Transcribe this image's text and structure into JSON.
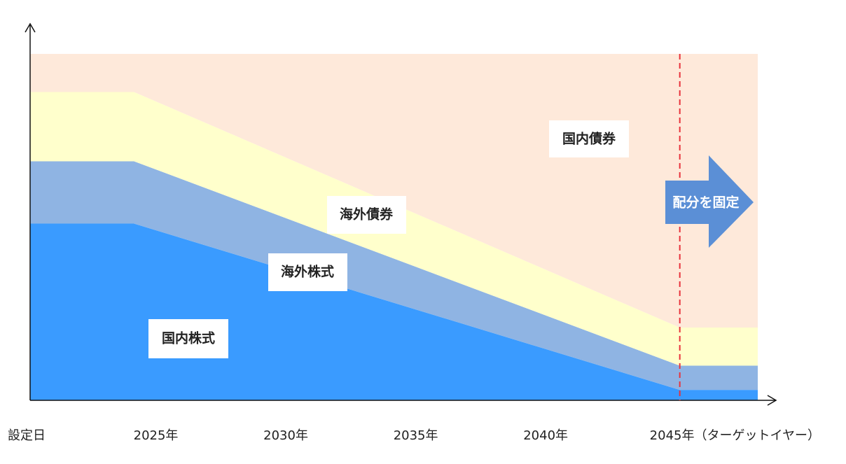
{
  "chart_data": {
    "type": "stacked_area",
    "x": [
      2020,
      2024,
      2045,
      2048
    ],
    "xlim": [
      2020,
      2048
    ],
    "ylim": [
      0,
      100
    ],
    "xticks": [
      {
        "value": 2020,
        "label": "設定日"
      },
      {
        "value": 2025,
        "label": "2025年"
      },
      {
        "value": 2030,
        "label": "2030年"
      },
      {
        "value": 2035,
        "label": "2035年"
      },
      {
        "value": 2040,
        "label": "2040年"
      },
      {
        "value": 2045,
        "label": "2045年（ターゲットイヤー）"
      }
    ],
    "series": [
      {
        "name": "国内株式",
        "color": "#3a9bff",
        "values": [
          51,
          51,
          3,
          3
        ]
      },
      {
        "name": "海外株式",
        "color": "#8fb4e3",
        "values": [
          18,
          18,
          7,
          7
        ]
      },
      {
        "name": "海外債券",
        "color": "#ffffcc",
        "values": [
          20,
          20,
          11,
          11
        ]
      },
      {
        "name": "国内債券",
        "color": "#fee9da",
        "values": [
          11,
          11,
          79,
          79
        ]
      }
    ],
    "target_line": {
      "x": 2045,
      "color": "#e8323c"
    },
    "annotation": "配分を固定",
    "grid": false
  }
}
